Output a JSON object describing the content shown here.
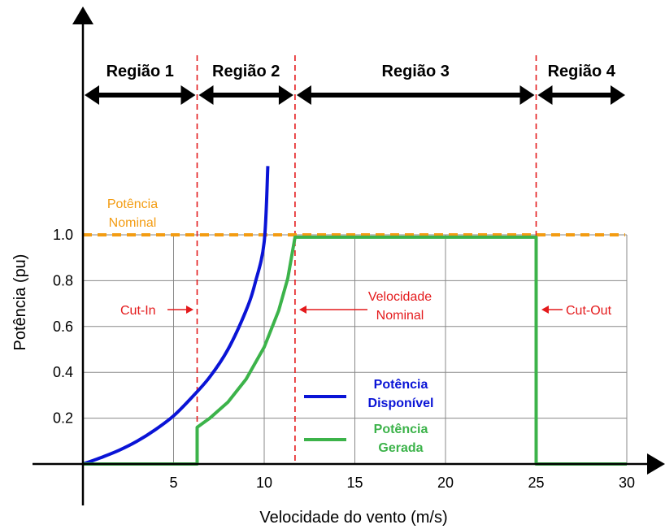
{
  "chart_data": {
    "type": "line",
    "xlabel": "Velocidade do vento (m/s)",
    "ylabel": "Potência (pu)",
    "xlim": [
      0,
      30
    ],
    "ylim": [
      0,
      1
    ],
    "x_ticks": [
      "5",
      "10",
      "15",
      "20",
      "25",
      "30"
    ],
    "y_ticks": [
      "0.2",
      "0.4",
      "0.6",
      "0.8",
      "1.0"
    ],
    "grid": true,
    "regions": [
      {
        "label": "Região 1",
        "x_start": 0,
        "x_end": 6.3
      },
      {
        "label": "Região 2",
        "x_start": 6.3,
        "x_end": 11.7
      },
      {
        "label": "Região 3",
        "x_start": 11.7,
        "x_end": 25
      },
      {
        "label": "Região 4",
        "x_start": 25,
        "x_end": 30
      }
    ],
    "reference_lines": [
      {
        "orientation": "vertical",
        "x": 6.3,
        "label": "Cut-In",
        "color": "#e41a1c",
        "style": "dashed"
      },
      {
        "orientation": "vertical",
        "x": 11.7,
        "label_line1": "Velocidade",
        "label_line2": "Nominal",
        "color": "#e41a1c",
        "style": "dashed"
      },
      {
        "orientation": "vertical",
        "x": 25,
        "label": "Cut-Out",
        "color": "#e41a1c",
        "style": "dashed"
      },
      {
        "orientation": "horizontal",
        "y": 1.0,
        "label_line1": "Potência",
        "label_line2": "Nominal",
        "color": "#f39c12",
        "style": "dashed"
      }
    ],
    "series": [
      {
        "name_line1": "Potência",
        "name_line2": "Disponível",
        "color": "#0a14d6",
        "x": [
          0,
          1,
          2,
          3,
          4,
          5,
          6,
          7,
          8,
          9,
          9.5,
          10,
          10.2
        ],
        "y": [
          0,
          0.028,
          0.06,
          0.1,
          0.15,
          0.21,
          0.29,
          0.38,
          0.5,
          0.67,
          0.79,
          0.97,
          1.3
        ]
      },
      {
        "name_line1": "Potência",
        "name_line2": "Gerada",
        "color": "#3cb34a",
        "x": [
          0,
          6.3,
          6.3,
          7,
          8,
          9,
          10,
          10.8,
          11.3,
          11.7,
          11.7,
          25,
          25,
          30
        ],
        "y": [
          0,
          0,
          0.16,
          0.2,
          0.27,
          0.37,
          0.51,
          0.67,
          0.81,
          0.99,
          0.99,
          0.99,
          0,
          0
        ]
      }
    ]
  }
}
